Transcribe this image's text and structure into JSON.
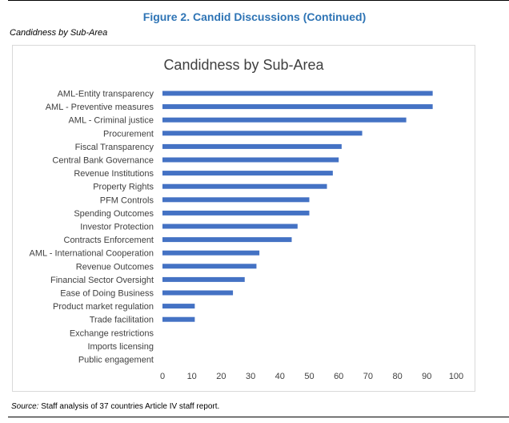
{
  "figure": {
    "title": "Figure 2. Candid Discussions (Continued)",
    "subheading": "Candidness by Sub-Area"
  },
  "source": {
    "prefix": "Source:",
    "text": " Staff analysis of 37 countries Article IV staff report."
  },
  "chart_data": {
    "type": "bar",
    "orientation": "horizontal",
    "title": "Candidness by Sub-Area",
    "xlabel": "",
    "ylabel": "",
    "xlim": [
      0,
      100
    ],
    "xticks": [
      0,
      10,
      20,
      30,
      40,
      50,
      60,
      70,
      80,
      90,
      100
    ],
    "grid": false,
    "bar_color": "#4472c4",
    "categories": [
      "AML-Entity transparency",
      "AML - Preventive measures",
      "AML - Criminal justice",
      "Procurement",
      "Fiscal Transparency",
      "Central Bank Governance",
      "Revenue Institutions",
      "Property Rights",
      "PFM Controls",
      "Spending Outcomes",
      "Investor Protection",
      "Contracts Enforcement",
      "AML - International Cooperation",
      "Revenue Outcomes",
      "Financial Sector Oversight",
      "Ease of Doing Business",
      "Product market regulation",
      "Trade facilitation",
      "Exchange restrictions",
      "Imports licensing",
      "Public engagement"
    ],
    "values": [
      92,
      92,
      83,
      68,
      61,
      60,
      58,
      56,
      50,
      50,
      46,
      44,
      33,
      32,
      28,
      24,
      11,
      11,
      0,
      0,
      0
    ]
  }
}
